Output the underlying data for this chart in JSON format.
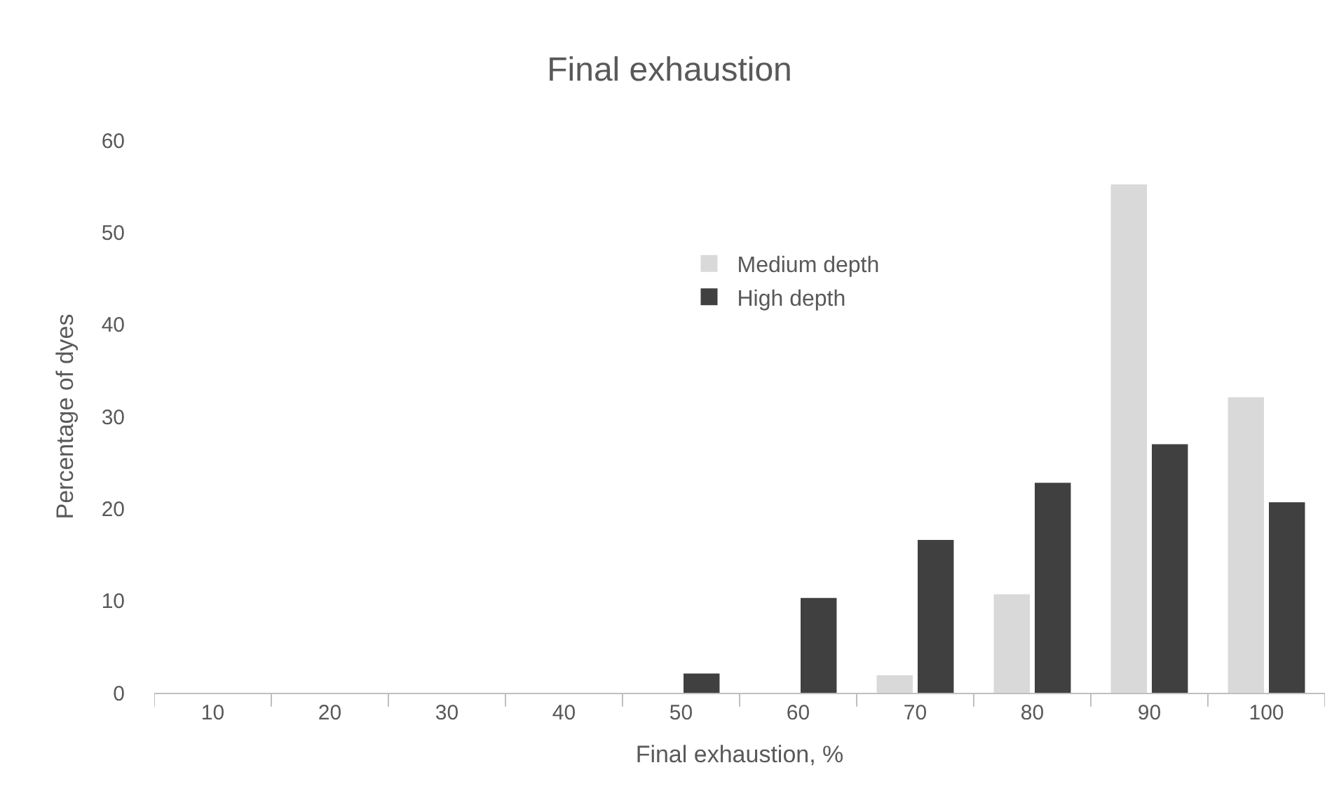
{
  "chart_data": {
    "type": "bar",
    "title": "Final exhaustion",
    "xlabel": "Final exhaustion, %",
    "ylabel": "Percentage of dyes",
    "categories": [
      "10",
      "20",
      "30",
      "40",
      "50",
      "60",
      "70",
      "80",
      "90",
      "100"
    ],
    "series": [
      {
        "name": "Medium depth",
        "color": "#d9d9d9",
        "values": [
          0,
          0,
          0,
          0,
          0,
          0,
          1.9,
          10.7,
          55.2,
          32.1
        ]
      },
      {
        "name": "High depth",
        "color": "#404040",
        "values": [
          0,
          0,
          0,
          0,
          2.1,
          10.3,
          16.6,
          22.8,
          27.0,
          20.7
        ]
      }
    ],
    "ylim": [
      0,
      60
    ],
    "yticks": [
      0,
      10,
      20,
      30,
      40,
      50,
      60
    ],
    "grid": false,
    "legend": "top left"
  }
}
